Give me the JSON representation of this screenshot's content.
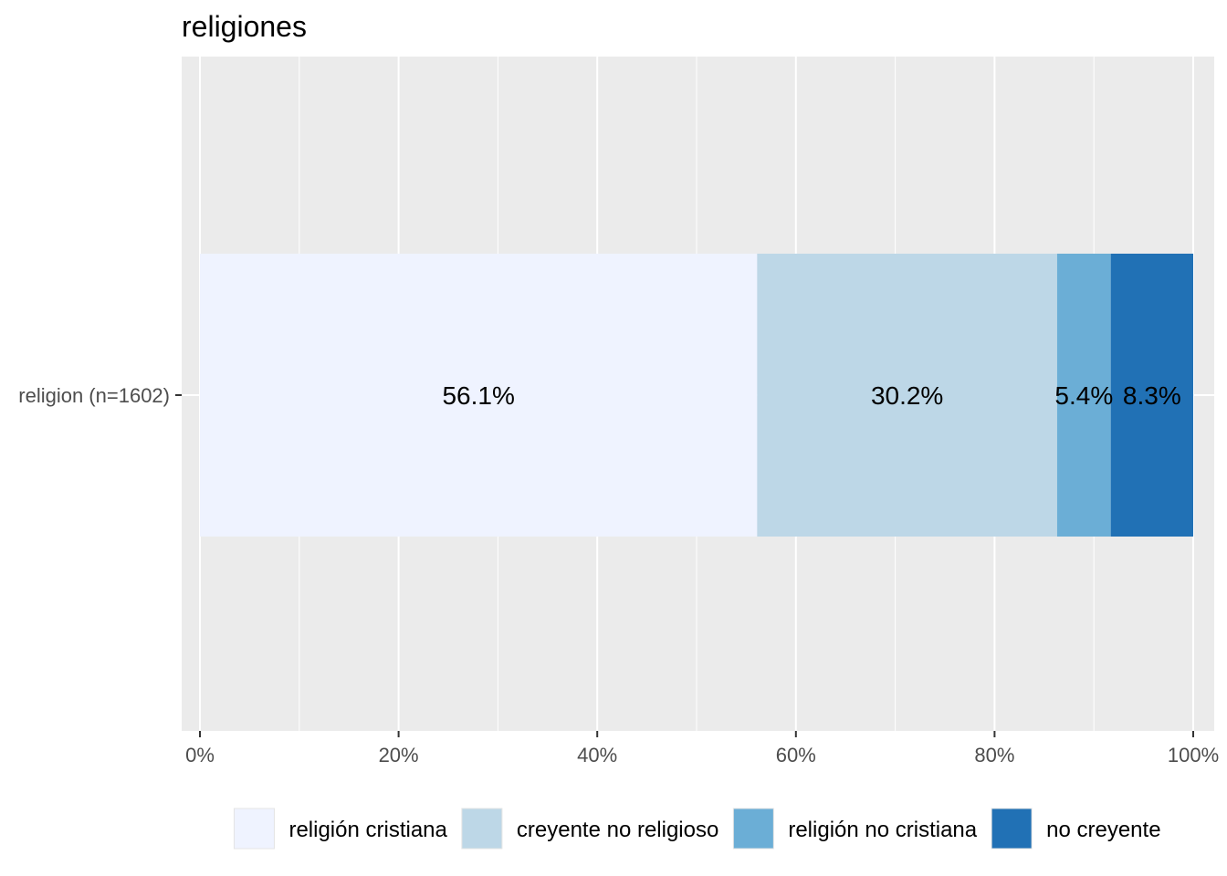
{
  "chart_data": {
    "type": "bar",
    "orientation": "horizontal",
    "stacked": true,
    "title": "religiones",
    "categories": [
      "religion (n=1602)"
    ],
    "series": [
      {
        "name": "religión cristiana",
        "values": [
          56.1
        ],
        "label": "56.1%",
        "color": "#eff3ff"
      },
      {
        "name": "creyente no religioso",
        "values": [
          30.2
        ],
        "label": "30.2%",
        "color": "#bdd7e7"
      },
      {
        "name": "religión no cristiana",
        "values": [
          5.4
        ],
        "label": "5.4%",
        "color": "#6baed6"
      },
      {
        "name": "no creyente",
        "values": [
          8.3
        ],
        "label": "8.3%",
        "color": "#2171b5"
      }
    ],
    "xlim": [
      0,
      100
    ],
    "x_ticks": [
      0,
      20,
      40,
      60,
      80,
      100
    ],
    "x_tick_labels": [
      "0%",
      "20%",
      "40%",
      "60%",
      "80%",
      "100%"
    ],
    "xlabel": "",
    "ylabel": "",
    "grid": true,
    "panel_background": "#ebebeb",
    "legend_position": "bottom"
  }
}
